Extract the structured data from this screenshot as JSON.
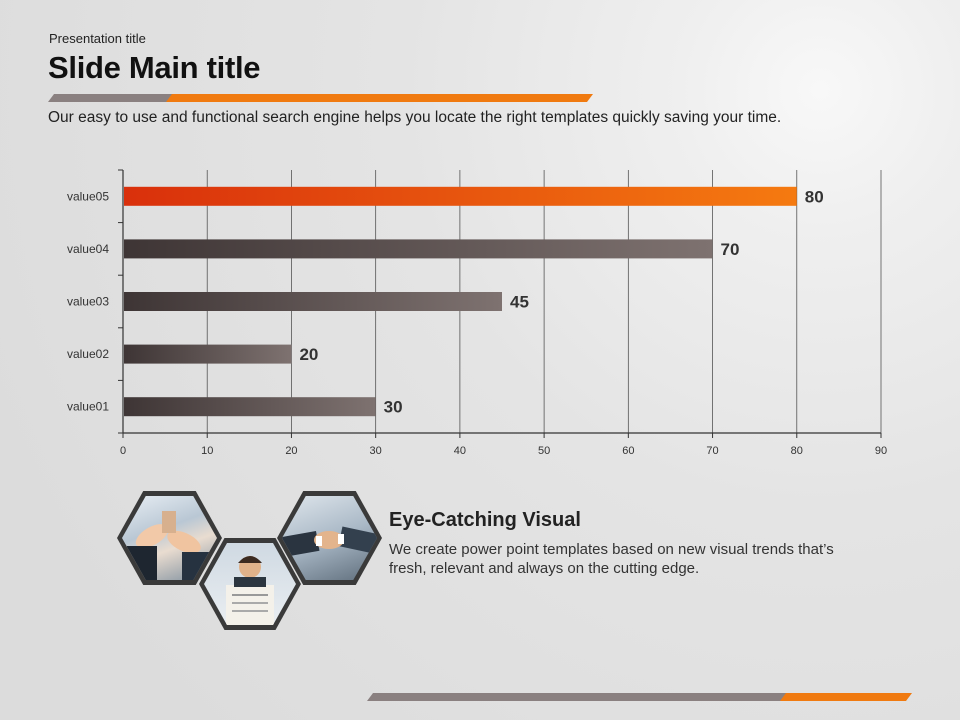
{
  "header": {
    "presentation_title": "Presentation title",
    "main_title": "Slide Main title",
    "intro": "Our easy to use and functional search engine helps you locate the right templates quickly saving your time."
  },
  "colors": {
    "accent_orange": "#f07a10",
    "accent_red": "#d9300c",
    "bar_dark": "#3e3535",
    "bar_light": "#7e7270",
    "decor_gray": "#8a8080"
  },
  "chart_data": {
    "type": "bar",
    "orientation": "horizontal",
    "categories": [
      "value05",
      "value04",
      "value03",
      "value02",
      "value01"
    ],
    "values": [
      80,
      70,
      45,
      20,
      30
    ],
    "highlight_category": "value05",
    "xlim": [
      0,
      90
    ],
    "x_ticks": [
      0,
      10,
      20,
      30,
      40,
      50,
      60,
      70,
      80,
      90
    ],
    "grid": "vertical",
    "title": "",
    "xlabel": "",
    "ylabel": ""
  },
  "visual": {
    "title": "Eye-Catching Visual",
    "body": "We create power point templates based on new visual trends that’s fresh, relevant and always on the cutting edge.",
    "images": [
      "clapping-hands-photo",
      "businessman-reading-newspaper-photo",
      "handshake-photo"
    ]
  }
}
